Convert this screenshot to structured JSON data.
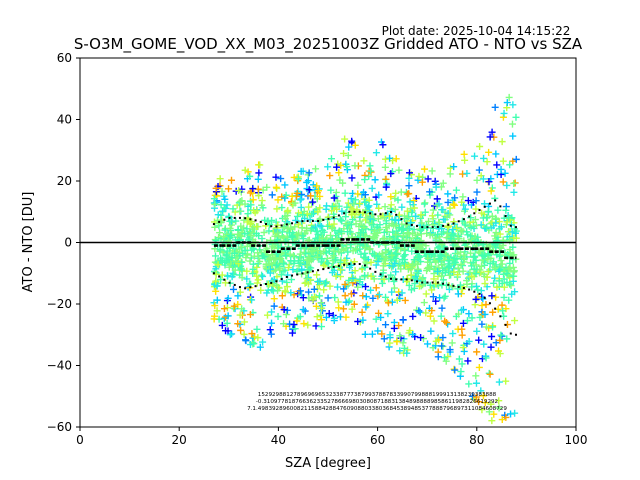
{
  "chart_data": {
    "type": "scatter",
    "title": "S-O3M_GOME_VOD_XX_M03_20251003Z Gridded ATO - NTO vs SZA",
    "subtitle": "Plot date: 2025-10-04 14:15:22",
    "xlabel": "SZA [degree]",
    "ylabel": "ATO - NTO [DU]",
    "xlim": [
      0,
      100
    ],
    "ylim": [
      -60,
      60
    ],
    "xticks": [
      "0",
      "20",
      "40",
      "60",
      "80",
      "100"
    ],
    "yticks": [
      "−60",
      "−40",
      "−20",
      "0",
      "20",
      "40",
      "60"
    ],
    "xtick_values": [
      0,
      20,
      40,
      60,
      80,
      100
    ],
    "ytick_values": [
      -60,
      -40,
      -20,
      0,
      20,
      40,
      60
    ],
    "zero_line": 0,
    "marker": "+",
    "colors": [
      "#0000ff",
      "#0080ff",
      "#00c8ff",
      "#22e8e8",
      "#40ffb0",
      "#80ff80",
      "#c0ff40",
      "#ffe000",
      "#ffa000"
    ],
    "sza_range": [
      27,
      88
    ],
    "series": [
      {
        "name": "median",
        "style": "black step",
        "x": [
          27,
          30,
          33,
          36,
          39,
          42,
          45,
          48,
          51,
          54,
          57,
          60,
          63,
          66,
          69,
          72,
          75,
          78,
          81,
          84,
          87
        ],
        "values": [
          -1,
          -1,
          0,
          -1,
          -3,
          -2,
          -1,
          -1,
          -1,
          1,
          1,
          0,
          0,
          -1,
          -3,
          -3,
          -2,
          -2,
          -2,
          -3,
          -5
        ]
      },
      {
        "name": "upper",
        "style": "black dotted",
        "x": [
          27,
          30,
          33,
          36,
          39,
          42,
          45,
          48,
          51,
          54,
          57,
          60,
          63,
          66,
          69,
          72,
          75,
          78,
          81,
          84,
          87
        ],
        "values": [
          6,
          8,
          8,
          7,
          5,
          6,
          7,
          7,
          8,
          10,
          10,
          9,
          10,
          6,
          5,
          5,
          6,
          8,
          11,
          14,
          5
        ]
      },
      {
        "name": "lower",
        "style": "black dotted",
        "x": [
          27,
          30,
          33,
          36,
          39,
          42,
          45,
          48,
          51,
          54,
          57,
          60,
          63,
          66,
          69,
          72,
          75,
          78,
          81,
          84,
          87
        ],
        "values": [
          -10,
          -13,
          -15,
          -14,
          -13,
          -11,
          -10,
          -9,
          -8,
          -7,
          -7,
          -10,
          -12,
          -12,
          -13,
          -13,
          -14,
          -15,
          -17,
          -22,
          -30
        ]
      },
      {
        "name": "scatter_envelope",
        "style": "colored + markers",
        "x": [
          27,
          30,
          33,
          36,
          39,
          42,
          45,
          48,
          51,
          54,
          57,
          60,
          63,
          66,
          69,
          72,
          75,
          78,
          81,
          84,
          87
        ],
        "upper": [
          20,
          22,
          25,
          28,
          22,
          22,
          24,
          25,
          28,
          38,
          32,
          35,
          28,
          27,
          25,
          24,
          25,
          30,
          38,
          45,
          48
        ],
        "lower": [
          -25,
          -30,
          -32,
          -35,
          -32,
          -30,
          -28,
          -28,
          -27,
          -25,
          -30,
          -32,
          -35,
          -38,
          -38,
          -38,
          -40,
          -50,
          -55,
          -60,
          -60
        ]
      }
    ],
    "annotation_rows": [
      "1529298812789696965323387773879937887833990799888199913138239383888",
      "-0.310977818766362335278666980308087188313848988889858611982826619292",
      "7.1.4983928960082115884288476090880338036845389485377888796897311084608729"
    ]
  }
}
